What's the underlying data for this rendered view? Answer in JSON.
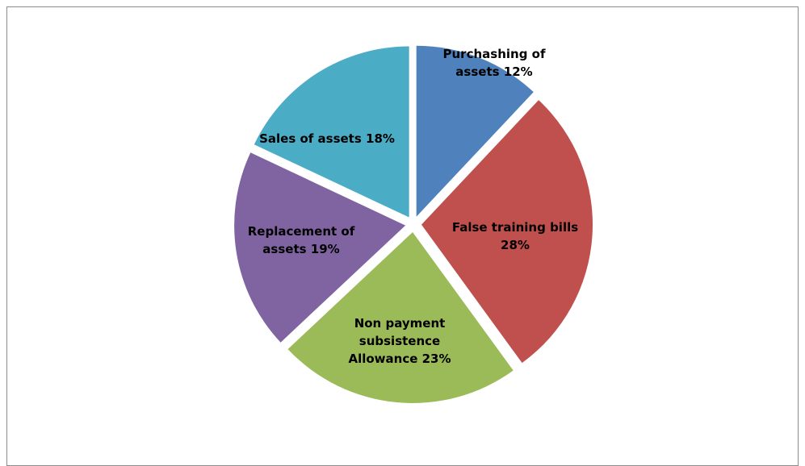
{
  "chart_data": {
    "type": "pie",
    "categories": [
      "Purchashing of assets",
      "False training bills",
      "Non payment subsistence Allowance",
      "Replacement of assets",
      "Sales of assets"
    ],
    "values": [
      12,
      28,
      23,
      19,
      18
    ],
    "value_labels": [
      "12%",
      "28%",
      "23%",
      "19%",
      "18%"
    ],
    "colors": [
      "#4f81bd",
      "#c0504d",
      "#9bbb59",
      "#8064a2",
      "#4bacc6"
    ]
  }
}
